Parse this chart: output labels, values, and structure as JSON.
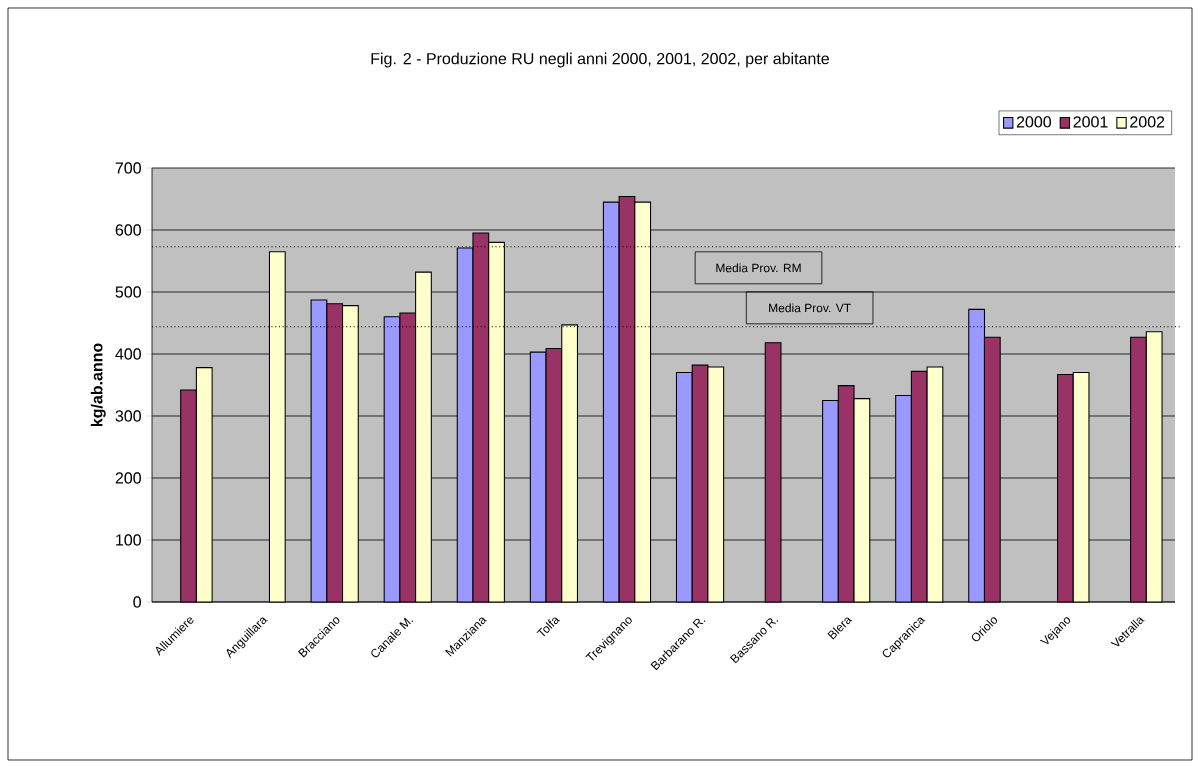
{
  "chart_data": {
    "type": "bar",
    "title": "Fig. 2 - Produzione RU negli anni 2000, 2001, 2002, per abitante",
    "ylabel": "kg/ab.anno",
    "categories": [
      "Allumiere",
      "Anguillara",
      "Bracciano",
      "Canale M.",
      "Manziana",
      "Tolfa",
      "Trevignano",
      "Barbarano R.",
      "Bassano R.",
      "Blera",
      "Capranica",
      "Oriolo",
      "Vejano",
      "Vetralla"
    ],
    "series": [
      {
        "name": "2000",
        "color": "#9999ff",
        "values": [
          null,
          null,
          487,
          460,
          571,
          403,
          645,
          370,
          null,
          325,
          333,
          472,
          null,
          null
        ]
      },
      {
        "name": "2001",
        "color": "#993366",
        "values": [
          342,
          null,
          481,
          466,
          595,
          409,
          654,
          382,
          418,
          349,
          372,
          427,
          367,
          427
        ]
      },
      {
        "name": "2002",
        "color": "#ffffcc",
        "values": [
          378,
          565,
          478,
          532,
          580,
          447,
          645,
          379,
          null,
          328,
          379,
          null,
          370,
          436
        ]
      }
    ],
    "ylim": [
      0,
      700
    ],
    "yticks": [
      0,
      100,
      200,
      300,
      400,
      500,
      600,
      700
    ],
    "grid": "y",
    "legend": "top right",
    "ref_lines": [
      {
        "axis": "y",
        "value": 573,
        "label": "Media Prov. RM",
        "line_style": "dotted"
      },
      {
        "axis": "y",
        "value": 444,
        "label": "Media Prov. VT",
        "line_style": "dotted"
      }
    ]
  }
}
